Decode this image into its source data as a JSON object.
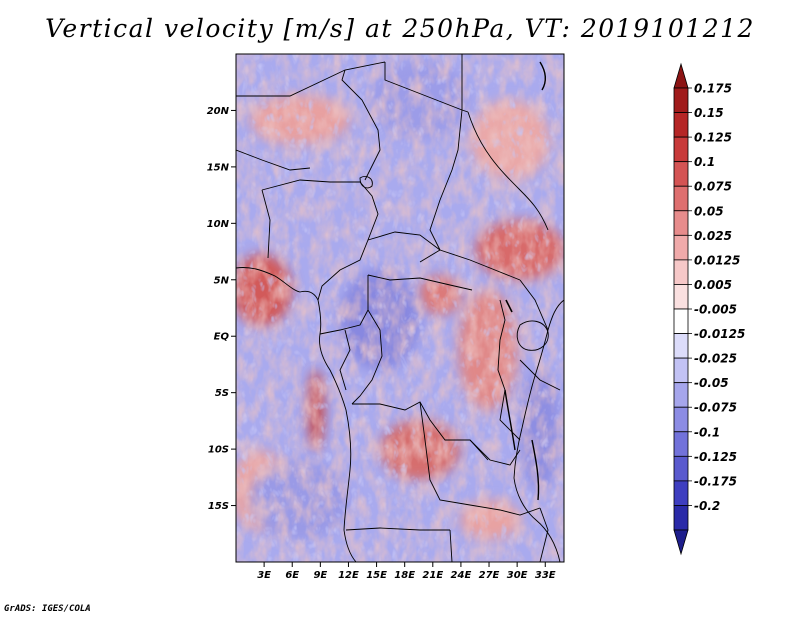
{
  "title": "Vertical velocity [m/s] at 250hPa, VT: 2019101212",
  "credit": "GrADS: IGES/COLA",
  "map": {
    "lon_range": [
      0,
      35
    ],
    "lat_range": [
      -20,
      25
    ],
    "lat_ticks": [
      {
        "value": 20,
        "label": "20N"
      },
      {
        "value": 15,
        "label": "15N"
      },
      {
        "value": 10,
        "label": "10N"
      },
      {
        "value": 5,
        "label": "5N"
      },
      {
        "value": 0,
        "label": "EQ"
      },
      {
        "value": -5,
        "label": "5S"
      },
      {
        "value": -10,
        "label": "10S"
      },
      {
        "value": -15,
        "label": "15S"
      }
    ],
    "lon_ticks": [
      {
        "value": 3,
        "label": "3E"
      },
      {
        "value": 6,
        "label": "6E"
      },
      {
        "value": 9,
        "label": "9E"
      },
      {
        "value": 12,
        "label": "12E"
      },
      {
        "value": 15,
        "label": "15E"
      },
      {
        "value": 18,
        "label": "18E"
      },
      {
        "value": 21,
        "label": "21E"
      },
      {
        "value": 24,
        "label": "24E"
      },
      {
        "value": 27,
        "label": "27E"
      },
      {
        "value": 30,
        "label": "30E"
      },
      {
        "value": 33,
        "label": "33E"
      }
    ]
  },
  "colorbar": {
    "levels": [
      {
        "label": "0.175",
        "color": "#a01b1b"
      },
      {
        "label": "0.15",
        "color": "#b52626"
      },
      {
        "label": "0.125",
        "color": "#c83a3a"
      },
      {
        "label": "0.1",
        "color": "#d45454"
      },
      {
        "label": "0.075",
        "color": "#de6f6f"
      },
      {
        "label": "0.05",
        "color": "#e78c8c"
      },
      {
        "label": "0.025",
        "color": "#f0aaaa"
      },
      {
        "label": "0.0125",
        "color": "#f6c8c8"
      },
      {
        "label": "0.005",
        "color": "#fae0e0"
      },
      {
        "label": "-0.005",
        "color": "#ffffff"
      },
      {
        "label": "-0.0125",
        "color": "#dcdcfa"
      },
      {
        "label": "-0.025",
        "color": "#c2c2f4"
      },
      {
        "label": "-0.05",
        "color": "#a6a6ec"
      },
      {
        "label": "-0.075",
        "color": "#8c8ce4"
      },
      {
        "label": "-0.1",
        "color": "#7272da"
      },
      {
        "label": "-0.125",
        "color": "#5a5ace"
      },
      {
        "label": "-0.175",
        "color": "#3e3ec0"
      },
      {
        "label": "-0.2",
        "color": "#2a2aa8"
      }
    ],
    "top_color": "#8c1414",
    "bottom_color": "#1e1e8c"
  }
}
